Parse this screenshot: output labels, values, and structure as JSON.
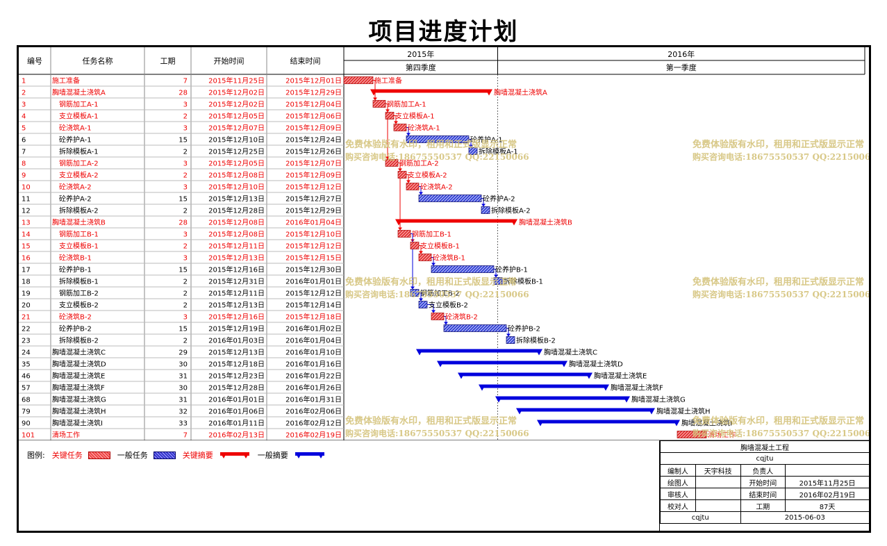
{
  "title": "项目进度计划",
  "table_headers": [
    "编号",
    "任务名称",
    "工期",
    "开始时间",
    "结束时间"
  ],
  "timescale": {
    "years": [
      {
        "label": "2015年"
      },
      {
        "label": "2016年"
      }
    ],
    "quarters": [
      {
        "label": "第四季度"
      },
      {
        "label": "第一季度"
      }
    ]
  },
  "watermark": {
    "line1": "免费体验版有水印，租用和正式版显示正常",
    "line2": "购买咨询电话:18675550537 QQ:22150066"
  },
  "legend": {
    "label": "图例:",
    "items": [
      {
        "label": "关键任务",
        "type": "crit-task"
      },
      {
        "label": "一般任务",
        "type": "task"
      },
      {
        "label": "关键摘要",
        "type": "crit-summary"
      },
      {
        "label": "一般摘要",
        "type": "summary"
      }
    ],
    "colors": {
      "critical": "#ee0000",
      "normal": "#0000dd"
    }
  },
  "title_block": {
    "project": "胸墙混凝土工程",
    "code": "cqjtu",
    "rows": [
      [
        "编制人",
        "天宇科技",
        "负责人",
        ""
      ],
      [
        "绘图人",
        "",
        "开始时间",
        "2015年11月25日"
      ],
      [
        "审核人",
        "",
        "结束时间",
        "2016年02月19日"
      ],
      [
        "校对人",
        "",
        "工期",
        "87天"
      ]
    ],
    "footer": [
      "cqjtu",
      "2015-06-03"
    ]
  },
  "chart_data": {
    "type": "gantt",
    "title": "项目进度计划",
    "x_axis_start": "2015-11-25",
    "tasks": [
      {
        "id": "1",
        "name": "施工准备",
        "duration": 7,
        "start": "2015年11月25日",
        "end": "2015年12月01日",
        "critical": true,
        "summary": false,
        "level": 0,
        "bar_label": "施工准备"
      },
      {
        "id": "2",
        "name": "胸墙混凝土浇筑A",
        "duration": 28,
        "start": "2015年12月02日",
        "end": "2015年12月29日",
        "critical": true,
        "summary": true,
        "level": 0,
        "bar_label": "胸墙混凝土浇筑A"
      },
      {
        "id": "3",
        "name": "钢筋加工A-1",
        "duration": 3,
        "start": "2015年12月02日",
        "end": "2015年12月04日",
        "critical": true,
        "summary": false,
        "level": 1,
        "bar_label": "钢筋加工A-1"
      },
      {
        "id": "4",
        "name": "支立模板A-1",
        "duration": 2,
        "start": "2015年12月05日",
        "end": "2015年12月06日",
        "critical": true,
        "summary": false,
        "level": 1,
        "bar_label": "支立模板A-1"
      },
      {
        "id": "5",
        "name": "砼浇筑A-1",
        "duration": 3,
        "start": "2015年12月07日",
        "end": "2015年12月09日",
        "critical": true,
        "summary": false,
        "level": 1,
        "bar_label": "砼浇筑A-1"
      },
      {
        "id": "6",
        "name": "砼养护A-1",
        "duration": 15,
        "start": "2015年12月10日",
        "end": "2015年12月24日",
        "critical": false,
        "summary": false,
        "level": 1,
        "bar_label": "砼养护A-1"
      },
      {
        "id": "7",
        "name": "拆除模板A-1",
        "duration": 2,
        "start": "2015年12月25日",
        "end": "2015年12月26日",
        "critical": false,
        "summary": false,
        "level": 1,
        "bar_label": "拆除模板A-1"
      },
      {
        "id": "8",
        "name": "钢筋加工A-2",
        "duration": 3,
        "start": "2015年12月05日",
        "end": "2015年12月07日",
        "critical": true,
        "summary": false,
        "level": 1,
        "bar_label": "钢筋加工A-2"
      },
      {
        "id": "9",
        "name": "支立模板A-2",
        "duration": 2,
        "start": "2015年12月08日",
        "end": "2015年12月09日",
        "critical": true,
        "summary": false,
        "level": 1,
        "bar_label": "支立模板A-2"
      },
      {
        "id": "10",
        "name": "砼浇筑A-2",
        "duration": 3,
        "start": "2015年12月10日",
        "end": "2015年12月12日",
        "critical": true,
        "summary": false,
        "level": 1,
        "bar_label": "砼浇筑A-2"
      },
      {
        "id": "11",
        "name": "砼养护A-2",
        "duration": 15,
        "start": "2015年12月13日",
        "end": "2015年12月27日",
        "critical": false,
        "summary": false,
        "level": 1,
        "bar_label": "砼养护A-2"
      },
      {
        "id": "12",
        "name": "拆除模板A-2",
        "duration": 2,
        "start": "2015年12月28日",
        "end": "2015年12月29日",
        "critical": false,
        "summary": false,
        "level": 1,
        "bar_label": "拆除模板A-2"
      },
      {
        "id": "13",
        "name": "胸墙混凝土浇筑B",
        "duration": 28,
        "start": "2015年12月08日",
        "end": "2016年01月04日",
        "critical": true,
        "summary": true,
        "level": 0,
        "bar_label": "胸墙混凝土浇筑B"
      },
      {
        "id": "14",
        "name": "钢筋加工B-1",
        "duration": 3,
        "start": "2015年12月08日",
        "end": "2015年12月10日",
        "critical": true,
        "summary": false,
        "level": 1,
        "bar_label": "钢筋加工B-1"
      },
      {
        "id": "15",
        "name": "支立模板B-1",
        "duration": 2,
        "start": "2015年12月11日",
        "end": "2015年12月12日",
        "critical": true,
        "summary": false,
        "level": 1,
        "bar_label": "支立模板B-1"
      },
      {
        "id": "16",
        "name": "砼浇筑B-1",
        "duration": 3,
        "start": "2015年12月13日",
        "end": "2015年12月15日",
        "critical": true,
        "summary": false,
        "level": 1,
        "bar_label": "砼浇筑B-1"
      },
      {
        "id": "17",
        "name": "砼养护B-1",
        "duration": 15,
        "start": "2015年12月16日",
        "end": "2015年12月30日",
        "critical": false,
        "summary": false,
        "level": 1,
        "bar_label": "砼养护B-1"
      },
      {
        "id": "18",
        "name": "拆除模板B-1",
        "duration": 2,
        "start": "2015年12月31日",
        "end": "2016年01月01日",
        "critical": false,
        "summary": false,
        "level": 1,
        "bar_label": "拆除模板B-1"
      },
      {
        "id": "19",
        "name": "钢筋加工B-2",
        "duration": 2,
        "start": "2015年12月11日",
        "end": "2015年12月12日",
        "critical": false,
        "summary": false,
        "level": 1,
        "bar_label": "钢筋加工B-2"
      },
      {
        "id": "20",
        "name": "支立模板B-2",
        "duration": 2,
        "start": "2015年12月13日",
        "end": "2015年12月14日",
        "critical": false,
        "summary": false,
        "level": 1,
        "bar_label": "支立模板B-2"
      },
      {
        "id": "21",
        "name": "砼浇筑B-2",
        "duration": 3,
        "start": "2015年12月16日",
        "end": "2015年12月18日",
        "critical": true,
        "summary": false,
        "level": 1,
        "bar_label": "砼浇筑B-2"
      },
      {
        "id": "22",
        "name": "砼养护B-2",
        "duration": 15,
        "start": "2015年12月19日",
        "end": "2016年01月02日",
        "critical": false,
        "summary": false,
        "level": 1,
        "bar_label": "砼养护B-2"
      },
      {
        "id": "23",
        "name": "拆除模板B-2",
        "duration": 2,
        "start": "2016年01月03日",
        "end": "2016年01月04日",
        "critical": false,
        "summary": false,
        "level": 1,
        "bar_label": "拆除模板B-2"
      },
      {
        "id": "24",
        "name": "胸墙混凝土浇筑C",
        "duration": 29,
        "start": "2015年12月13日",
        "end": "2016年01月10日",
        "critical": false,
        "summary": true,
        "level": 0,
        "bar_label": "胸墙混凝土浇筑C"
      },
      {
        "id": "35",
        "name": "胸墙混凝土浇筑D",
        "duration": 30,
        "start": "2015年12月18日",
        "end": "2016年01月16日",
        "critical": false,
        "summary": true,
        "level": 0,
        "bar_label": "胸墙混凝土浇筑D"
      },
      {
        "id": "46",
        "name": "胸墙混凝土浇筑E",
        "duration": 31,
        "start": "2015年12月23日",
        "end": "2016年01月22日",
        "critical": false,
        "summary": true,
        "level": 0,
        "bar_label": "胸墙混凝土浇筑E"
      },
      {
        "id": "57",
        "name": "胸墙混凝土浇筑F",
        "duration": 30,
        "start": "2015年12月28日",
        "end": "2016年01月26日",
        "critical": false,
        "summary": true,
        "level": 0,
        "bar_label": "胸墙混凝土浇筑F"
      },
      {
        "id": "68",
        "name": "胸墙混凝土浇筑G",
        "duration": 31,
        "start": "2016年01月01日",
        "end": "2016年01月31日",
        "critical": false,
        "summary": true,
        "level": 0,
        "bar_label": "胸墙混凝土浇筑G"
      },
      {
        "id": "79",
        "name": "胸墙混凝土浇筑H",
        "duration": 32,
        "start": "2016年01月06日",
        "end": "2016年02月06日",
        "critical": false,
        "summary": true,
        "level": 0,
        "bar_label": "胸墙混凝土浇筑H"
      },
      {
        "id": "90",
        "name": "胸墙混凝土浇筑I",
        "duration": 33,
        "start": "2016年01月11日",
        "end": "2016年02月12日",
        "critical": false,
        "summary": true,
        "level": 0,
        "bar_label": "胸墙混凝土浇筑I"
      },
      {
        "id": "101",
        "name": "清场工作",
        "duration": 7,
        "start": "2016年02月13日",
        "end": "2016年02月19日",
        "critical": true,
        "summary": false,
        "level": 0,
        "bar_label": "清场工作"
      }
    ],
    "links": [
      [
        0,
        2
      ],
      [
        2,
        3
      ],
      [
        3,
        4
      ],
      [
        4,
        5
      ],
      [
        5,
        6
      ],
      [
        2,
        7
      ],
      [
        7,
        8
      ],
      [
        8,
        9
      ],
      [
        9,
        10
      ],
      [
        10,
        11
      ],
      [
        7,
        13
      ],
      [
        13,
        14
      ],
      [
        14,
        15
      ],
      [
        15,
        16
      ],
      [
        16,
        17
      ],
      [
        13,
        18
      ],
      [
        18,
        19
      ],
      [
        19,
        20
      ],
      [
        20,
        21
      ],
      [
        21,
        22
      ]
    ]
  }
}
